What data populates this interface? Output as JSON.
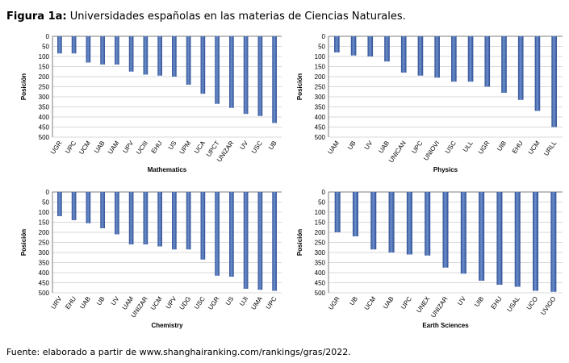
{
  "figure": {
    "title_bold": "Figura 1a:",
    "title_rest": " Universidades españolas en las materias de Ciencias Naturales.",
    "source": "Fuente: elaborado a partir de www.shanghairanking.com/rankings/gras/2022."
  },
  "colors": {
    "bar": "#2e4f93",
    "bar_light": "#6d8fcc",
    "grid": "#d9d9d9",
    "axis": "#7f7f7f"
  },
  "chart_data": [
    {
      "type": "bar",
      "title": "Mathematics",
      "xlabel": "Mathematics",
      "ylabel": "Posición",
      "y_inverted": true,
      "ylim": [
        0,
        500
      ],
      "yticks": [
        0,
        50,
        100,
        150,
        200,
        250,
        300,
        350,
        400,
        450,
        500
      ],
      "grid": true,
      "categories": [
        "UGR",
        "UPC",
        "UCM",
        "UAB",
        "UAM",
        "UPV",
        "UCIII",
        "EHU",
        "US",
        "UPM",
        "UCA",
        "UPCT",
        "UNIZAR",
        "UV",
        "USC",
        "UB"
      ],
      "values": [
        85,
        85,
        130,
        140,
        140,
        175,
        190,
        195,
        200,
        240,
        285,
        335,
        355,
        385,
        395,
        430
      ]
    },
    {
      "type": "bar",
      "title": "Physics",
      "xlabel": "Physics",
      "ylabel": "Posición",
      "y_inverted": true,
      "ylim": [
        0,
        500
      ],
      "yticks": [
        0,
        50,
        100,
        150,
        200,
        250,
        300,
        350,
        400,
        450,
        500
      ],
      "grid": true,
      "categories": [
        "UAM",
        "UB",
        "UV",
        "UAB",
        "UNICAN",
        "UPC",
        "UNIOVI",
        "USC",
        "ULL",
        "UGR",
        "UIB",
        "EHU",
        "UCM",
        "URLL"
      ],
      "values": [
        80,
        95,
        100,
        125,
        180,
        195,
        205,
        225,
        225,
        250,
        280,
        315,
        370,
        450
      ]
    },
    {
      "type": "bar",
      "title": "Chemistry",
      "xlabel": "Chemistry",
      "ylabel": "Posición",
      "y_inverted": true,
      "ylim": [
        0,
        500
      ],
      "yticks": [
        0,
        50,
        100,
        150,
        200,
        250,
        300,
        350,
        400,
        450,
        500
      ],
      "grid": true,
      "categories": [
        "URV",
        "EHU",
        "UAB",
        "UB",
        "UV",
        "UAM",
        "UNIZAR",
        "UCM",
        "UPV",
        "UDG",
        "USC",
        "UGR",
        "US",
        "UJI",
        "UMA",
        "UPC"
      ],
      "values": [
        120,
        140,
        155,
        180,
        210,
        260,
        260,
        270,
        285,
        285,
        335,
        415,
        420,
        480,
        485,
        490
      ]
    },
    {
      "type": "bar",
      "title": "Earth Sciences",
      "xlabel": "Earth Sciences",
      "ylabel": "Posición",
      "y_inverted": true,
      "ylim": [
        0,
        500
      ],
      "yticks": [
        0,
        50,
        100,
        150,
        200,
        250,
        300,
        350,
        400,
        450,
        500
      ],
      "grid": true,
      "categories": [
        "UGR",
        "UB",
        "UCM",
        "UAB",
        "UPC",
        "UNEX",
        "UNIZAR",
        "UV",
        "UIB",
        "EHU",
        "USAL",
        "UCO",
        "UVIGO"
      ],
      "values": [
        200,
        220,
        285,
        300,
        310,
        315,
        375,
        405,
        440,
        460,
        470,
        490,
        495
      ]
    }
  ]
}
